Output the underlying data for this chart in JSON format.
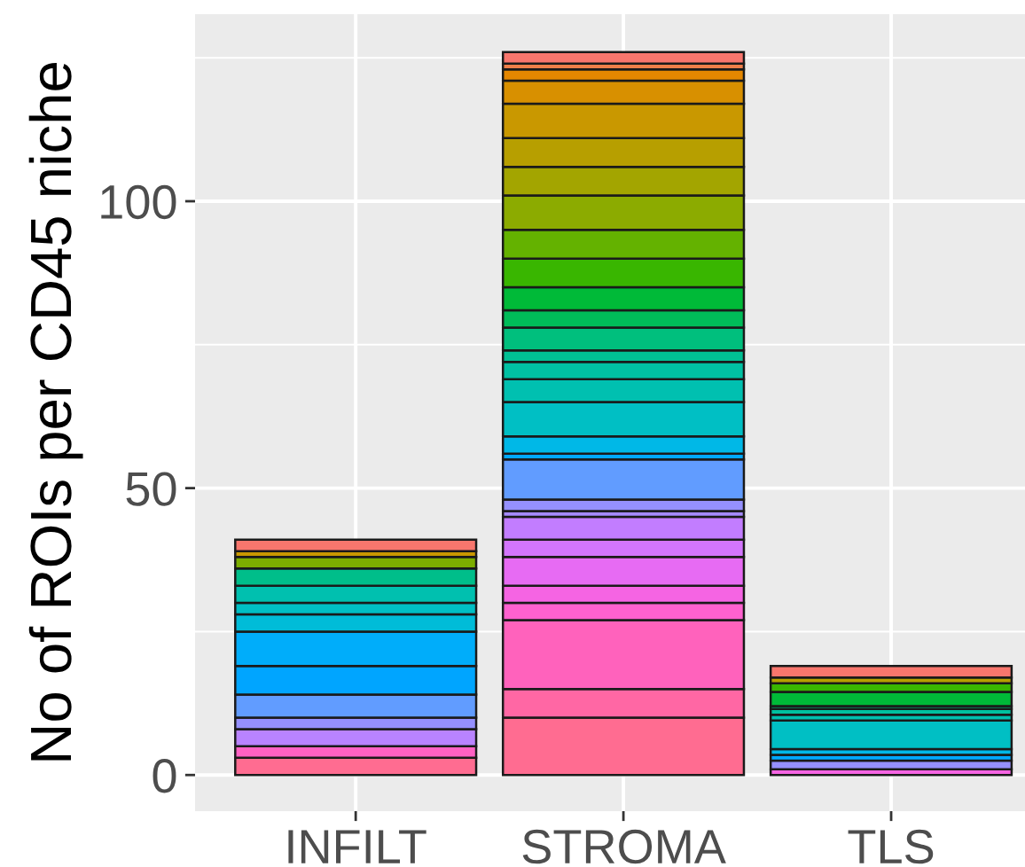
{
  "chart_data": {
    "type": "bar",
    "stacked": true,
    "categories": [
      "INFILT",
      "STROMA",
      "TLS"
    ],
    "ylabel": "No of ROIs per CD45 niche",
    "ylim": [
      -6.3,
      132.6
    ],
    "yticks": [
      0,
      50,
      100
    ],
    "grid": true,
    "series": [
      {
        "color": "#FF6C91",
        "values": [
          3,
          null,
          null
        ]
      },
      {
        "color": "#FF61C3",
        "values": [
          2,
          null,
          null
        ]
      },
      {
        "color": "#B983FF",
        "values": [
          3,
          null,
          null
        ]
      },
      {
        "color": "#9590FF",
        "values": [
          2,
          null,
          null
        ]
      },
      {
        "color": "#619CFF",
        "values": [
          4,
          null,
          null
        ]
      },
      {
        "color": "#00A5FF",
        "values": [
          5,
          null,
          null
        ]
      },
      {
        "color": "#00ADFA",
        "values": [
          6,
          null,
          null
        ]
      },
      {
        "color": "#00BCD8",
        "values": [
          3,
          null,
          null
        ]
      },
      {
        "color": "#00BFC4",
        "values": [
          2,
          null,
          null
        ]
      },
      {
        "color": "#00C0AF",
        "values": [
          3,
          null,
          null
        ]
      },
      {
        "color": "#00BE8A",
        "values": [
          3,
          null,
          null
        ]
      },
      {
        "color": "#7CAE00",
        "values": [
          2,
          null,
          null
        ]
      },
      {
        "color": "#C99800",
        "values": [
          1,
          null,
          null
        ]
      },
      {
        "color": "#F8766D",
        "values": [
          2,
          null,
          null
        ]
      },
      {
        "color": "#FF6C91",
        "values": [
          null,
          10,
          null
        ]
      },
      {
        "color": "#FF67A4",
        "values": [
          null,
          5,
          null
        ]
      },
      {
        "color": "#FF62BC",
        "values": [
          null,
          12,
          null
        ]
      },
      {
        "color": "#FE61CF",
        "values": [
          null,
          3,
          null
        ]
      },
      {
        "color": "#F564E3",
        "values": [
          null,
          3,
          null
        ]
      },
      {
        "color": "#E76BF3",
        "values": [
          null,
          5,
          null
        ]
      },
      {
        "color": "#D375FD",
        "values": [
          null,
          3,
          null
        ]
      },
      {
        "color": "#C27DFF",
        "values": [
          null,
          4,
          null
        ]
      },
      {
        "color": "#A58AFF",
        "values": [
          null,
          1,
          null
        ]
      },
      {
        "color": "#9590FF",
        "values": [
          null,
          2,
          null
        ]
      },
      {
        "color": "#619CFF",
        "values": [
          null,
          7,
          null
        ]
      },
      {
        "color": "#00A8FF",
        "values": [
          null,
          1,
          null
        ]
      },
      {
        "color": "#00B8E7",
        "values": [
          null,
          3,
          null
        ]
      },
      {
        "color": "#00BFC4",
        "values": [
          null,
          6,
          null
        ]
      },
      {
        "color": "#00C0B0",
        "values": [
          null,
          4,
          null
        ]
      },
      {
        "color": "#00C1A3",
        "values": [
          null,
          3,
          null
        ]
      },
      {
        "color": "#00C094",
        "values": [
          null,
          2,
          null
        ]
      },
      {
        "color": "#00BF7D",
        "values": [
          null,
          4,
          null
        ]
      },
      {
        "color": "#00BC59",
        "values": [
          null,
          3,
          null
        ]
      },
      {
        "color": "#00BA38",
        "values": [
          null,
          4,
          null
        ]
      },
      {
        "color": "#39B600",
        "values": [
          null,
          5,
          null
        ]
      },
      {
        "color": "#64B200",
        "values": [
          null,
          5,
          null
        ]
      },
      {
        "color": "#8CAB00",
        "values": [
          null,
          6,
          null
        ]
      },
      {
        "color": "#A3A500",
        "values": [
          null,
          5,
          null
        ]
      },
      {
        "color": "#B79F00",
        "values": [
          null,
          5,
          null
        ]
      },
      {
        "color": "#C99800",
        "values": [
          null,
          6,
          null
        ]
      },
      {
        "color": "#D89000",
        "values": [
          null,
          4,
          null
        ]
      },
      {
        "color": "#E58700",
        "values": [
          null,
          2,
          null
        ]
      },
      {
        "color": "#EF7F49",
        "values": [
          null,
          1,
          null
        ]
      },
      {
        "color": "#F8766D",
        "values": [
          null,
          2,
          null
        ]
      },
      {
        "color": "#F564E3",
        "values": [
          null,
          null,
          1
        ]
      },
      {
        "color": "#9590FF",
        "values": [
          null,
          null,
          1.5
        ]
      },
      {
        "color": "#00A9FF",
        "values": [
          null,
          null,
          1
        ]
      },
      {
        "color": "#00B8E7",
        "values": [
          null,
          null,
          1
        ]
      },
      {
        "color": "#00BFC4",
        "values": [
          null,
          null,
          5
        ]
      },
      {
        "color": "#00C0B0",
        "values": [
          null,
          null,
          1
        ]
      },
      {
        "color": "#00C19F",
        "values": [
          null,
          null,
          1
        ]
      },
      {
        "color": "#00BF7D",
        "values": [
          null,
          null,
          0.5
        ]
      },
      {
        "color": "#00BA38",
        "values": [
          null,
          null,
          2.5
        ]
      },
      {
        "color": "#39B600",
        "values": [
          null,
          null,
          1.5
        ]
      },
      {
        "color": "#B79F00",
        "values": [
          null,
          null,
          1
        ]
      },
      {
        "color": "#F8766D",
        "values": [
          null,
          null,
          2
        ]
      }
    ]
  }
}
